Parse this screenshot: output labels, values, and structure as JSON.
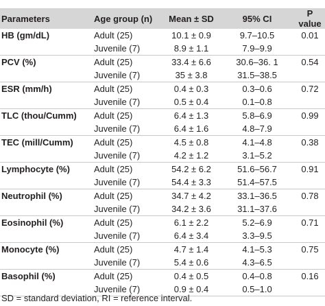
{
  "table": {
    "headers": [
      "Parameters",
      "Age group (n)",
      "Mean ± SD",
      "95% CI",
      "P value"
    ],
    "groups": [
      {
        "parameter": "HB (gm/dL)",
        "rows": [
          [
            "Adult (25)",
            "10.1 ± 0.9",
            "9.7–10.5",
            "0.01"
          ],
          [
            "Juvenile (7)",
            "8.9 ± 1.1",
            "7.9–9.9"
          ]
        ]
      },
      {
        "parameter": "PCV (%)",
        "rows": [
          [
            "Adult (25)",
            "33.4 ± 6.6",
            "30.6–36. 1",
            "0.54"
          ],
          [
            "Juvenile (7)",
            "35 ± 3.8",
            "31.5–38.5"
          ]
        ]
      },
      {
        "parameter": "ESR (mm/h)",
        "rows": [
          [
            "Adult (25)",
            "0.4 ± 0.3",
            "0.3–0.6",
            "0.72"
          ],
          [
            "Juvenile (7)",
            "0.5 ± 0.4",
            "0.1–0.8"
          ]
        ]
      },
      {
        "parameter": "TLC (thou/Cumm)",
        "rows": [
          [
            "Adult (25)",
            "6.4 ± 1.3",
            "5.8–6.9",
            "0.99"
          ],
          [
            "Juvenile (7)",
            "6.4 ± 1.6",
            "4.8–7.9"
          ]
        ]
      },
      {
        "parameter": "TEC (mill/Cumm)",
        "rows": [
          [
            "Adult (25)",
            "4.5 ± 0.8",
            "4.1–4.8",
            "0.38"
          ],
          [
            "Juvenile (7)",
            "4.2 ± 1.2",
            "3.1–5.2"
          ]
        ]
      },
      {
        "parameter": "Lymphocyte (%)",
        "rows": [
          [
            "Adult (25)",
            "54.2 ± 6.2",
            "51.6–56.7",
            "0.91"
          ],
          [
            "Juvenile (7)",
            "54.4 ± 3.3",
            "51.4–57.5"
          ]
        ]
      },
      {
        "parameter": "Neutrophil (%)",
        "rows": [
          [
            "Adult (25)",
            "34.7 ± 4.2",
            "33.1–36.5",
            "0.78"
          ],
          [
            "Juvenile (7)",
            "34.2 ± 3.6",
            "31.1–37.6"
          ]
        ]
      },
      {
        "parameter": "Eosinophil (%)",
        "rows": [
          [
            "Adult (25)",
            "6.1 ± 2.2",
            "5.2–6.9",
            "0.71"
          ],
          [
            "Juvenile (7)",
            "6.4 ± 3.4",
            "3.3–9.5"
          ]
        ]
      },
      {
        "parameter": "Monocyte (%)",
        "rows": [
          [
            "Adult (25)",
            "4.7 ± 1.4",
            "4.1–5.3",
            "0.75"
          ],
          [
            "Juvenile (7)",
            "5.4 ± 0.6",
            "4.3–6.5"
          ]
        ]
      },
      {
        "parameter": "Basophil (%)",
        "rows": [
          [
            "Adult (25)",
            "0.4 ± 0.5",
            "0.4–0.8",
            "0.16"
          ],
          [
            "Juvenile (7)",
            "0.9 ± 0.4",
            "0.5–1.0"
          ]
        ]
      }
    ]
  },
  "footnote": "SD = standard deviation, RI = reference interval."
}
